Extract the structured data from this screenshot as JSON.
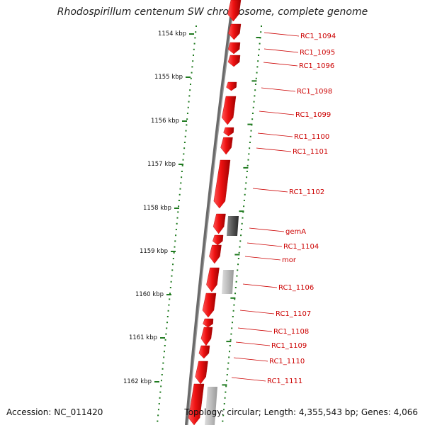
{
  "title": "Rhodospirillum centenum SW chromosome, complete genome",
  "accession": "Accession: NC_011420",
  "summary": "Topology: circular; Length: 4,355,543 bp; Genes: 4,066",
  "colors": {
    "gene": "#ee1111",
    "gene_dark": "#b30000",
    "backbone": "#6a6a6a",
    "tick": "#1f7a1f",
    "label": "#cc0000",
    "gray_feature": "#555555",
    "light_feature": "#bbbbbb"
  },
  "scale": {
    "unit": "kbp",
    "ticks": [
      "1154 kbp",
      "1155 kbp",
      "1156 kbp",
      "1157 kbp",
      "1158 kbp",
      "1159 kbp",
      "1160 kbp",
      "1161 kbp",
      "1162 kbp"
    ]
  },
  "genes": [
    {
      "label": "RC1_1094",
      "color": "red"
    },
    {
      "label": "RC1_1095",
      "color": "red"
    },
    {
      "label": "RC1_1096",
      "color": "red"
    },
    {
      "label": "RC1_1098",
      "color": "red"
    },
    {
      "label": "RC1_1099",
      "color": "red"
    },
    {
      "label": "RC1_1100",
      "color": "red"
    },
    {
      "label": "RC1_1101",
      "color": "red"
    },
    {
      "label": "RC1_1102",
      "color": "red"
    },
    {
      "label": "gemA",
      "color": "dark"
    },
    {
      "label": "RC1_1104",
      "color": "red"
    },
    {
      "label": "mor",
      "color": "red"
    },
    {
      "label": "RC1_1106",
      "color": "light"
    },
    {
      "label": "RC1_1107",
      "color": "red"
    },
    {
      "label": "RC1_1108",
      "color": "red"
    },
    {
      "label": "RC1_1109",
      "color": "red"
    },
    {
      "label": "RC1_1110",
      "color": "red"
    },
    {
      "label": "RC1_1111",
      "color": "red"
    }
  ]
}
